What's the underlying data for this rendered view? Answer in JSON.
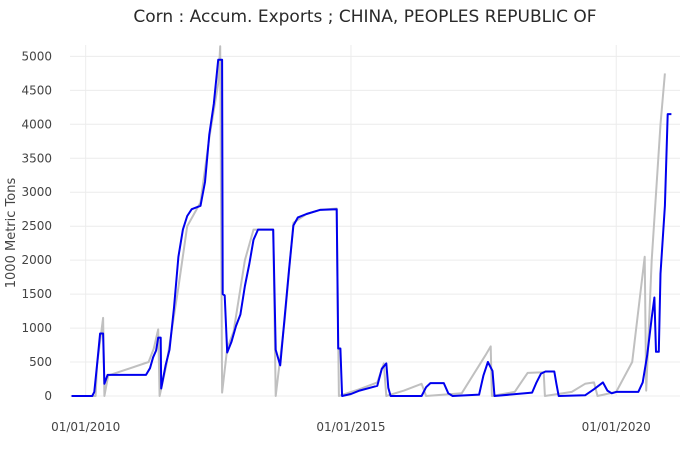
{
  "chart_data": {
    "type": "line",
    "title": "Corn :  Accum. Exports ;  CHINA, PEOPLES REPUBLIC OF",
    "xlabel": "",
    "ylabel": "1000 Metric Tons",
    "ylim": [
      0,
      5300
    ],
    "xlim": [
      "2009-09-15",
      "2021-03-15"
    ],
    "yticks": [
      0,
      500,
      1000,
      1500,
      2000,
      2500,
      3000,
      3500,
      4000,
      4500,
      5000
    ],
    "yticklabels": [
      "0",
      "500",
      "1000",
      "1500",
      "2000",
      "2500",
      "3000",
      "3500",
      "4000",
      "4500",
      "5000"
    ],
    "xticks": [
      "2010-01-01",
      "2015-01-01",
      "2020-01-01"
    ],
    "xticklabels": [
      "01/01/2010",
      "01/01/2015",
      "01/01/2020"
    ],
    "grid": true,
    "legend": "none",
    "colors": {
      "main": "#0000ee",
      "secondary": "#c0c0c0"
    },
    "series": [
      {
        "color": "#c0c0c0",
        "points": [
          [
            "2009-09-25",
            0
          ],
          [
            "2010-03-10",
            0
          ],
          [
            "2010-03-20",
            450
          ],
          [
            "2010-05-01",
            1150
          ],
          [
            "2010-05-10",
            0
          ],
          [
            "2010-06-05",
            300
          ],
          [
            "2011-03-10",
            500
          ],
          [
            "2011-04-15",
            700
          ],
          [
            "2011-05-15",
            980
          ],
          [
            "2011-05-25",
            0
          ],
          [
            "2011-07-10",
            450
          ],
          [
            "2011-10-01",
            1600
          ],
          [
            "2011-12-01",
            2500
          ],
          [
            "2012-03-01",
            2850
          ],
          [
            "2012-05-01",
            3800
          ],
          [
            "2012-07-01",
            4600
          ],
          [
            "2012-07-15",
            5150
          ],
          [
            "2012-07-28",
            50
          ],
          [
            "2012-09-01",
            700
          ],
          [
            "2012-10-15",
            950
          ],
          [
            "2013-01-01",
            2000
          ],
          [
            "2013-03-01",
            2450
          ],
          [
            "2013-07-15",
            2450
          ],
          [
            "2013-08-01",
            0
          ],
          [
            "2013-10-01",
            1100
          ],
          [
            "2013-12-01",
            2550
          ],
          [
            "2014-03-01",
            2680
          ],
          [
            "2014-06-01",
            2740
          ],
          [
            "2014-09-25",
            2760
          ],
          [
            "2014-10-10",
            0
          ],
          [
            "2015-03-01",
            100
          ],
          [
            "2015-07-01",
            200
          ],
          [
            "2015-08-15",
            480
          ],
          [
            "2015-09-01",
            0
          ],
          [
            "2016-01-01",
            80
          ],
          [
            "2016-05-01",
            180
          ],
          [
            "2016-06-01",
            0
          ],
          [
            "2017-02-01",
            40
          ],
          [
            "2017-07-15",
            600
          ],
          [
            "2017-08-20",
            730
          ],
          [
            "2017-08-28",
            0
          ],
          [
            "2018-02-01",
            60
          ],
          [
            "2018-05-01",
            340
          ],
          [
            "2018-08-20",
            350
          ],
          [
            "2018-08-28",
            0
          ],
          [
            "2019-03-01",
            60
          ],
          [
            "2019-06-01",
            180
          ],
          [
            "2019-08-01",
            200
          ],
          [
            "2019-08-25",
            0
          ],
          [
            "2020-01-01",
            60
          ],
          [
            "2020-04-20",
            500
          ],
          [
            "2020-07-15",
            2050
          ],
          [
            "2020-07-25",
            80
          ],
          [
            "2020-09-01",
            2000
          ],
          [
            "2020-11-01",
            4000
          ],
          [
            "2020-12-01",
            4750
          ]
        ]
      },
      {
        "color": "#0000ee",
        "points": [
          [
            "2009-09-25",
            0
          ],
          [
            "2010-02-15",
            0
          ],
          [
            "2010-03-01",
            60
          ],
          [
            "2010-03-20",
            450
          ],
          [
            "2010-04-10",
            920
          ],
          [
            "2010-05-01",
            920
          ],
          [
            "2010-05-10",
            180
          ],
          [
            "2010-06-01",
            310
          ],
          [
            "2011-02-20",
            310
          ],
          [
            "2011-03-20",
            410
          ],
          [
            "2011-04-10",
            570
          ],
          [
            "2011-05-01",
            670
          ],
          [
            "2011-05-15",
            860
          ],
          [
            "2011-06-01",
            860
          ],
          [
            "2011-06-05",
            110
          ],
          [
            "2011-07-05",
            450
          ],
          [
            "2011-08-01",
            680
          ],
          [
            "2011-09-01",
            1300
          ],
          [
            "2011-10-01",
            2050
          ],
          [
            "2011-11-01",
            2450
          ],
          [
            "2011-12-01",
            2650
          ],
          [
            "2012-01-01",
            2750
          ],
          [
            "2012-03-01",
            2800
          ],
          [
            "2012-04-01",
            3150
          ],
          [
            "2012-05-01",
            3850
          ],
          [
            "2012-06-01",
            4300
          ],
          [
            "2012-07-01",
            4950
          ],
          [
            "2012-07-28",
            4950
          ],
          [
            "2012-08-01",
            1500
          ],
          [
            "2012-08-15",
            1480
          ],
          [
            "2012-09-01",
            640
          ],
          [
            "2012-10-01",
            800
          ],
          [
            "2012-11-01",
            1030
          ],
          [
            "2012-12-01",
            1200
          ],
          [
            "2013-01-01",
            1620
          ],
          [
            "2013-02-01",
            1950
          ],
          [
            "2013-03-01",
            2300
          ],
          [
            "2013-04-01",
            2450
          ],
          [
            "2013-07-15",
            2450
          ],
          [
            "2013-08-01",
            680
          ],
          [
            "2013-09-01",
            450
          ],
          [
            "2013-10-01",
            1150
          ],
          [
            "2013-11-01",
            1870
          ],
          [
            "2013-12-01",
            2510
          ],
          [
            "2014-01-01",
            2630
          ],
          [
            "2014-03-01",
            2680
          ],
          [
            "2014-06-01",
            2740
          ],
          [
            "2014-09-25",
            2750
          ],
          [
            "2014-10-05",
            700
          ],
          [
            "2014-10-20",
            700
          ],
          [
            "2014-11-01",
            0
          ],
          [
            "2015-01-01",
            30
          ],
          [
            "2015-03-01",
            80
          ],
          [
            "2015-07-01",
            150
          ],
          [
            "2015-08-01",
            400
          ],
          [
            "2015-09-01",
            480
          ],
          [
            "2015-09-15",
            120
          ],
          [
            "2015-10-01",
            0
          ],
          [
            "2016-05-01",
            0
          ],
          [
            "2016-06-01",
            130
          ],
          [
            "2016-07-01",
            190
          ],
          [
            "2016-10-01",
            190
          ],
          [
            "2016-11-01",
            40
          ],
          [
            "2016-12-01",
            0
          ],
          [
            "2017-06-01",
            20
          ],
          [
            "2017-07-01",
            300
          ],
          [
            "2017-08-01",
            500
          ],
          [
            "2017-09-01",
            370
          ],
          [
            "2017-09-15",
            0
          ],
          [
            "2018-06-01",
            50
          ],
          [
            "2018-07-01",
            200
          ],
          [
            "2018-08-01",
            330
          ],
          [
            "2018-09-01",
            360
          ],
          [
            "2018-11-01",
            360
          ],
          [
            "2018-11-15",
            180
          ],
          [
            "2018-12-01",
            0
          ],
          [
            "2019-06-01",
            10
          ],
          [
            "2019-08-01",
            100
          ],
          [
            "2019-09-01",
            150
          ],
          [
            "2019-10-01",
            200
          ],
          [
            "2019-11-01",
            80
          ],
          [
            "2019-12-01",
            40
          ],
          [
            "2020-01-01",
            60
          ],
          [
            "2020-06-01",
            60
          ],
          [
            "2020-07-01",
            200
          ],
          [
            "2020-08-01",
            600
          ],
          [
            "2020-09-01",
            1150
          ],
          [
            "2020-09-20",
            1450
          ],
          [
            "2020-10-01",
            650
          ],
          [
            "2020-10-20",
            650
          ],
          [
            "2020-11-01",
            1800
          ],
          [
            "2020-12-01",
            2800
          ],
          [
            "2020-12-20",
            4150
          ],
          [
            "2021-01-15",
            4150
          ]
        ]
      }
    ]
  }
}
